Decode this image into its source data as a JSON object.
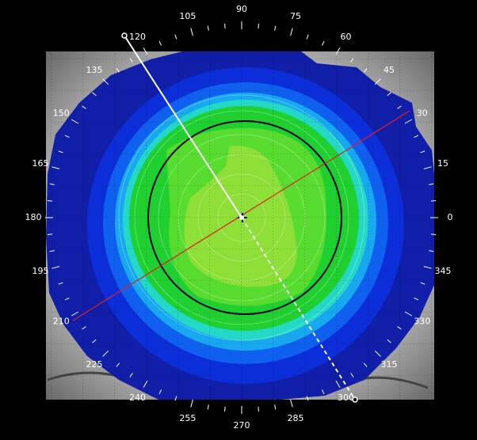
{
  "angle_scale": {
    "angles": [
      0,
      15,
      30,
      45,
      60,
      75,
      90,
      105,
      120,
      135,
      150,
      165,
      180,
      195,
      210,
      225,
      240,
      255,
      270,
      285,
      300,
      315,
      330,
      345
    ]
  }
}
